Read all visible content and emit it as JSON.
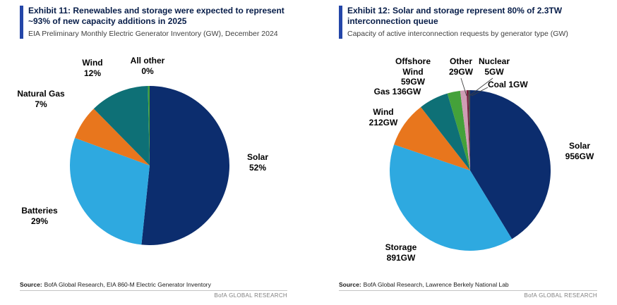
{
  "chart_data": [
    {
      "type": "pie",
      "title": "Exhibit 11: Renewables and storage were expected to represent ~93% of new capacity additions in 2025",
      "subtitle": "EIA Preliminary Monthly Electric Generator Inventory (GW), December 2024",
      "direction": "clockwise",
      "start_angle": "12-oclock",
      "units": "% of new capacity additions",
      "slices": [
        {
          "label": "Solar",
          "value": 52,
          "display": "52%",
          "color": "#0c2d6e",
          "label_lines": [
            "Solar",
            "52%"
          ]
        },
        {
          "label": "Batteries",
          "value": 29,
          "display": "29%",
          "color": "#2ea9e0",
          "label_lines": [
            "Batteries",
            "29%"
          ]
        },
        {
          "label": "Natural Gas",
          "value": 7,
          "display": "7%",
          "color": "#e8761d",
          "label_lines": [
            "Natural Gas",
            "7%"
          ]
        },
        {
          "label": "Wind",
          "value": 12,
          "display": "12%",
          "color": "#0e7076",
          "label_lines": [
            "Wind",
            "12%"
          ]
        },
        {
          "label": "All other",
          "value": 0,
          "display": "0%",
          "color": "#44a13a",
          "label_lines": [
            "All other",
            "0%"
          ]
        }
      ],
      "source_label": "Source:",
      "source": "BofA Global Research, EIA 860-M Electric Generator Inventory",
      "brand": "BofA GLOBAL RESEARCH"
    },
    {
      "type": "pie",
      "title": "Exhibit 12: Solar and storage represent 80% of 2.3TW interconnection queue",
      "subtitle": "Capacity of active interconnection requests by generator type (GW)",
      "direction": "clockwise",
      "start_angle": "12-oclock",
      "units": "GW",
      "total_gw": 2289,
      "slices": [
        {
          "label": "Solar",
          "value": 956,
          "display": "956GW",
          "color": "#0c2d6e",
          "label_lines": [
            "Solar",
            "956GW"
          ]
        },
        {
          "label": "Storage",
          "value": 891,
          "display": "891GW",
          "color": "#2ea9e0",
          "label_lines": [
            "Storage",
            "891GW"
          ]
        },
        {
          "label": "Wind",
          "value": 212,
          "display": "212GW",
          "color": "#e8761d",
          "label_lines": [
            "Wind",
            "212GW"
          ]
        },
        {
          "label": "Gas",
          "value": 136,
          "display": "136GW",
          "color": "#0e7076",
          "label_lines": [
            "Gas 136GW"
          ]
        },
        {
          "label": "Offshore Wind",
          "value": 59,
          "display": "59GW",
          "color": "#44a13a",
          "label_lines": [
            "Offshore",
            "Wind",
            "59GW"
          ]
        },
        {
          "label": "Other",
          "value": 29,
          "display": "29GW",
          "color": "#cf9db4",
          "label_lines": [
            "Other",
            "29GW"
          ]
        },
        {
          "label": "Nuclear",
          "value": 5,
          "display": "5GW",
          "color": "#7a1e3c",
          "label_lines": [
            "Nuclear",
            "5GW"
          ]
        },
        {
          "label": "Coal",
          "value": 1,
          "display": "1GW",
          "color": "#4d4d4d",
          "label_lines": [
            "Coal 1GW"
          ]
        }
      ],
      "source_label": "Source:",
      "source": "BofA Global Research, Lawrence Berkely National Lab",
      "brand": "BofA GLOBAL RESEARCH"
    }
  ],
  "colors": {
    "accent_bar": "#2446a8",
    "title_text": "#071d49",
    "subtitle_text": "#404040",
    "brand_text": "#808080"
  }
}
